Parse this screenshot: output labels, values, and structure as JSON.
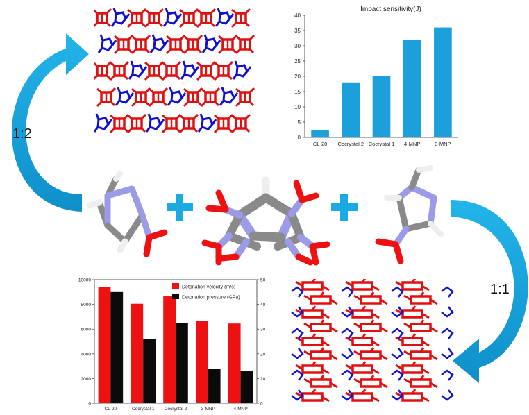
{
  "ratio_left": "1:2",
  "ratio_right": "1:1",
  "colors": {
    "arrow": "#1aa9e0",
    "bar_blue": "#1ba0dc",
    "bar_red": "#ee1111",
    "bar_black": "#0a0a0a",
    "crystal_red": "#e01010",
    "crystal_blue": "#1010d0",
    "atom_carbon": "#8a8a8a",
    "atom_nitrogen": "#9b9be8",
    "atom_oxygen": "#ee1111",
    "atom_hydrogen": "#f2f2f2"
  },
  "chart_data": [
    {
      "type": "bar",
      "title": "Impact sensitivity(J)",
      "categories": [
        "CL-20",
        "Cocrystal 2",
        "Cocrystal 1",
        "4-MNP",
        "3-MNP"
      ],
      "series": [
        {
          "values": [
            2.5,
            18,
            20,
            32,
            36
          ]
        }
      ],
      "ylim": [
        0,
        40
      ],
      "yticks": [
        0,
        5,
        10,
        15,
        20,
        25,
        30,
        35,
        40
      ],
      "grid": false,
      "legend": "none"
    },
    {
      "type": "bar",
      "categories": [
        "CL-20",
        "Cocrystal 1",
        "Cocrystal 2",
        "3-MNP",
        "4-MNP"
      ],
      "series": [
        {
          "name": "Detonation velocity (m/s)",
          "axis": "left",
          "values": [
            9400,
            8050,
            8650,
            6650,
            6450
          ]
        },
        {
          "name": "Detonation pressure (GPa)",
          "axis": "right",
          "values": [
            45,
            26,
            32.5,
            14,
            13
          ]
        }
      ],
      "ylim_left": [
        0,
        10000
      ],
      "yticks_left": [
        0,
        2000,
        4000,
        6000,
        8000,
        10000
      ],
      "ylim_right": [
        0,
        50
      ],
      "yticks_right": [
        0,
        10,
        20,
        30,
        40,
        50
      ],
      "grid": false,
      "legend": "top-right"
    }
  ]
}
